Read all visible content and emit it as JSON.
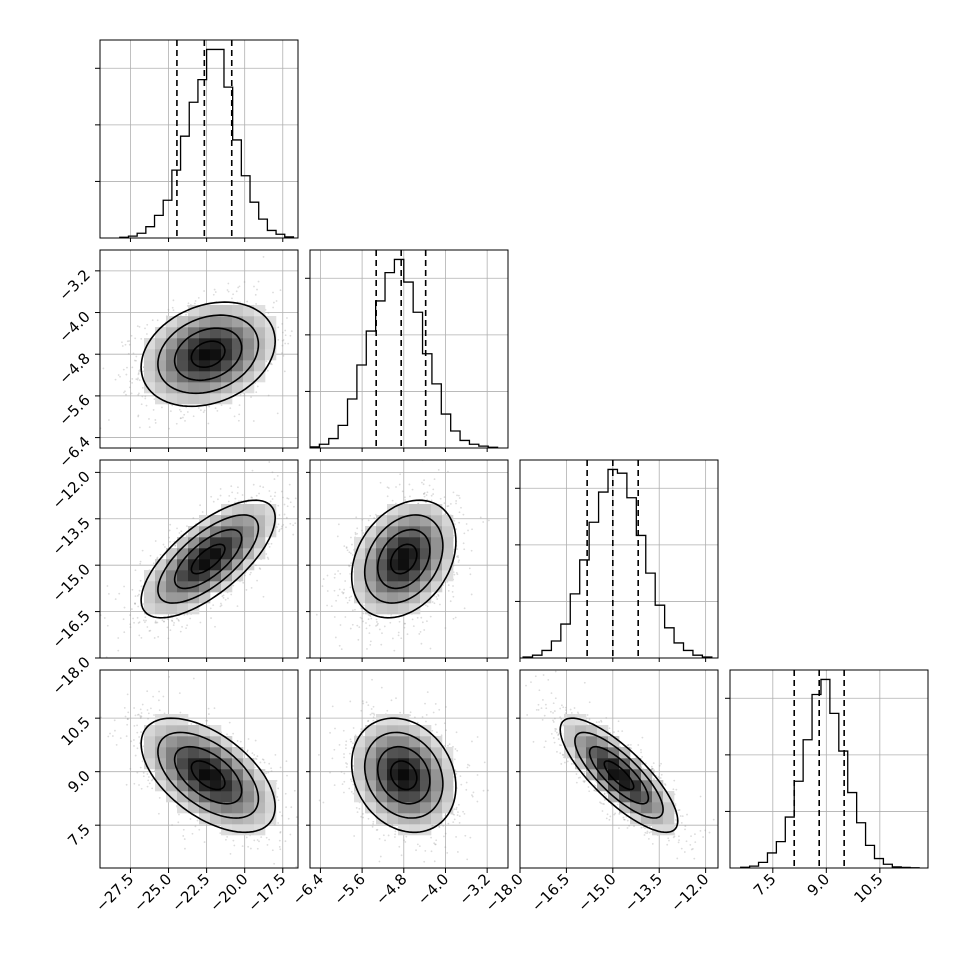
{
  "chart_data": {
    "type": "corner",
    "title": "",
    "grid": true,
    "quantiles": [
      0.16,
      0.5,
      0.84
    ],
    "parameters": [
      {
        "name": "",
        "range": [
          -29.5,
          -16.5
        ],
        "ticks": [
          -27.5,
          -25.0,
          -22.5,
          -20.0,
          -17.5
        ],
        "tick_labels": [
          "−27.5",
          "−25.0",
          "−22.5",
          "−20.0",
          "−17.5"
        ],
        "quantile_values": [
          -24.45,
          -22.65,
          -20.85
        ],
        "hist_bin_range": [
          -28.2,
          -16.8
        ],
        "hist_counts": [
          0.4,
          1,
          2.5,
          6,
          12,
          20,
          36,
          54,
          72,
          84,
          100,
          100,
          80,
          52,
          33,
          19,
          10,
          4,
          2,
          0.6
        ]
      },
      {
        "name": "",
        "range": [
          -6.6,
          -2.8
        ],
        "ticks": [
          -6.4,
          -5.6,
          -4.8,
          -4.0,
          -3.2
        ],
        "tick_labels": [
          "−6.4",
          "−5.6",
          "−4.8",
          "−4.0",
          "−3.2"
        ],
        "quantile_values": [
          -5.33,
          -4.85,
          -4.38
        ],
        "hist_bin_range": [
          -6.6,
          -3.0
        ],
        "hist_counts": [
          0.6,
          2,
          5,
          12,
          26,
          44,
          62,
          78,
          93,
          100,
          88,
          72,
          50,
          34,
          18,
          9,
          4,
          2,
          1,
          0.4
        ]
      },
      {
        "name": "",
        "range": [
          -18.0,
          -11.6
        ],
        "ticks": [
          -18.0,
          -16.5,
          -15.0,
          -13.5,
          -12.0
        ],
        "tick_labels": [
          "−18.0",
          "−16.5",
          "−15.0",
          "−13.5",
          "−12.0"
        ],
        "quantile_values": [
          -15.83,
          -15.0,
          -14.18
        ],
        "hist_bin_range": [
          -17.9,
          -11.8
        ],
        "hist_counts": [
          0.5,
          1.5,
          4,
          9,
          18,
          34,
          52,
          72,
          88,
          100,
          98,
          85,
          65,
          45,
          28,
          16,
          8,
          4,
          1.5,
          0.5
        ]
      },
      {
        "name": "",
        "range": [
          6.3,
          11.85
        ],
        "ticks": [
          7.5,
          9.0,
          10.5
        ],
        "tick_labels": [
          "7.5",
          "9.0",
          "10.5"
        ],
        "quantile_values": [
          8.1,
          8.8,
          9.5
        ],
        "hist_bin_range": [
          6.6,
          11.6
        ],
        "hist_counts": [
          0.4,
          1,
          3,
          8,
          14,
          27,
          46,
          68,
          92,
          100,
          82,
          62,
          40,
          24,
          12,
          5,
          2,
          0.6,
          0.3,
          0.1
        ]
      }
    ],
    "pairs": [
      {
        "x": 0,
        "y": 1,
        "center": [
          -22.4,
          -4.8
        ],
        "spread": [
          2.2,
          0.5
        ],
        "rho": 0.25
      },
      {
        "x": 0,
        "y": 2,
        "center": [
          -22.4,
          -14.8
        ],
        "spread": [
          2.2,
          0.95
        ],
        "rho": 0.7
      },
      {
        "x": 1,
        "y": 2,
        "center": [
          -4.8,
          -14.8
        ],
        "spread": [
          0.5,
          0.95
        ],
        "rho": 0.3
      },
      {
        "x": 0,
        "y": 3,
        "center": [
          -22.4,
          8.9
        ],
        "spread": [
          2.2,
          0.8
        ],
        "rho": -0.55
      },
      {
        "x": 1,
        "y": 3,
        "center": [
          -4.8,
          8.9
        ],
        "spread": [
          0.5,
          0.8
        ],
        "rho": -0.2
      },
      {
        "x": 2,
        "y": 3,
        "center": [
          -14.8,
          8.9
        ],
        "spread": [
          0.95,
          0.8
        ],
        "rho": -0.8
      }
    ],
    "colors": {
      "line": "#000000",
      "grid": "#b0b0b0",
      "points": "#9a9a9a",
      "background": "#ffffff"
    }
  }
}
